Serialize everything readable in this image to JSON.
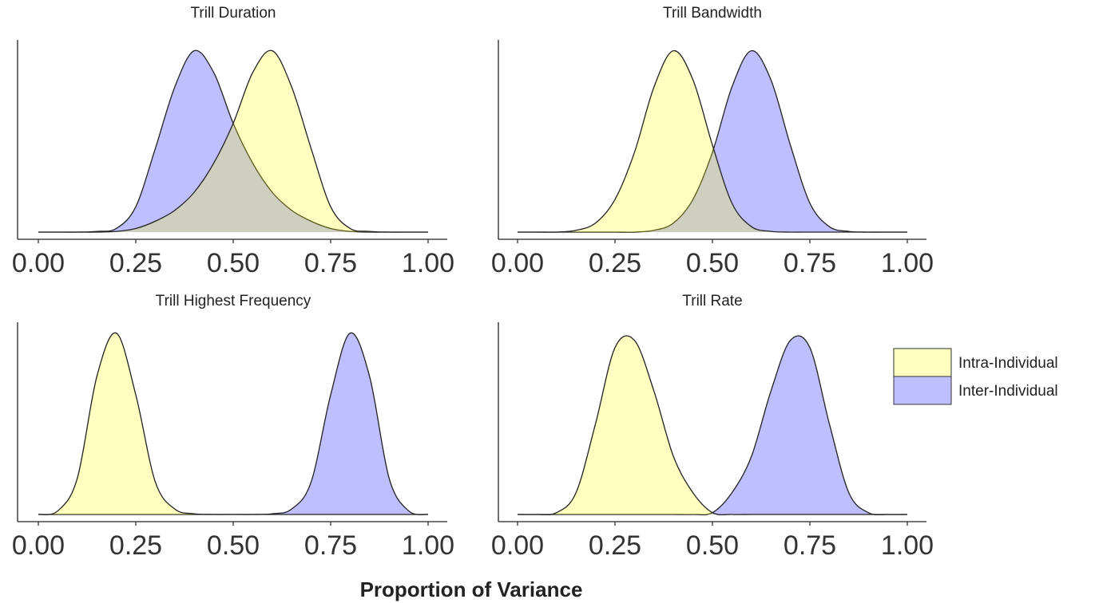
{
  "xlabel": "Proportion of Variance",
  "chart_data": [
    {
      "type": "density",
      "title": "Trill Duration",
      "x": [
        0,
        0.05,
        0.1,
        0.15,
        0.2,
        0.25,
        0.3,
        0.35,
        0.4,
        0.45,
        0.5,
        0.55,
        0.6,
        0.65,
        0.7,
        0.75,
        0.8,
        0.85,
        0.9,
        0.95,
        1
      ],
      "series": [
        {
          "name": "Intra-Individual",
          "color": "#ffff00",
          "values": [
            0,
            0,
            0,
            0,
            0.02,
            0.1,
            0.3,
            0.6,
            1.1,
            1.9,
            3.0,
            4.4,
            5.0,
            4.0,
            2.3,
            0.7,
            0.1,
            0.02,
            0,
            0,
            0
          ]
        },
        {
          "name": "Inter-Individual",
          "color": "#0000ff",
          "values": [
            0,
            0,
            0,
            0.02,
            0.1,
            0.7,
            2.3,
            4.0,
            5.0,
            4.4,
            3.0,
            1.9,
            1.1,
            0.6,
            0.3,
            0.1,
            0.02,
            0,
            0,
            0,
            0
          ]
        }
      ],
      "fill_alpha": 0.25,
      "xlim": [
        0,
        1
      ],
      "ylim": [
        0,
        5.3
      ],
      "xticks": [
        {
          "value": 0,
          "label": "0.00"
        },
        {
          "value": 0.25,
          "label": "0.25"
        },
        {
          "value": 0.5,
          "label": "0.50"
        },
        {
          "value": 0.75,
          "label": "0.75"
        },
        {
          "value": 1,
          "label": "1.00"
        }
      ]
    },
    {
      "type": "density",
      "title": "Trill Bandwidth",
      "x": [
        0,
        0.05,
        0.1,
        0.15,
        0.2,
        0.25,
        0.3,
        0.35,
        0.4,
        0.45,
        0.5,
        0.55,
        0.6,
        0.65,
        0.7,
        0.75,
        0.8,
        0.85,
        0.9,
        0.95,
        1
      ],
      "series": [
        {
          "name": "Intra-Individual",
          "color": "#ffff00",
          "values": [
            0,
            0,
            0,
            0.05,
            0.25,
            0.9,
            2.2,
            4.0,
            5.0,
            4.2,
            2.4,
            0.8,
            0.15,
            0.02,
            0,
            0,
            0,
            0,
            0,
            0,
            0
          ]
        },
        {
          "name": "Inter-Individual",
          "color": "#0000ff",
          "values": [
            0,
            0,
            0,
            0,
            0,
            0,
            0,
            0.05,
            0.25,
            0.9,
            2.2,
            4.0,
            5.0,
            4.2,
            2.4,
            0.8,
            0.15,
            0.02,
            0,
            0,
            0
          ]
        }
      ],
      "fill_alpha": 0.25,
      "xlim": [
        0,
        1
      ],
      "ylim": [
        0,
        5.3
      ],
      "xticks": [
        {
          "value": 0,
          "label": "0.00"
        },
        {
          "value": 0.25,
          "label": "0.25"
        },
        {
          "value": 0.5,
          "label": "0.50"
        },
        {
          "value": 0.75,
          "label": "0.75"
        },
        {
          "value": 1,
          "label": "1.00"
        }
      ]
    },
    {
      "type": "density",
      "title": "Trill Highest Frequency",
      "x": [
        0,
        0.05,
        0.1,
        0.15,
        0.2,
        0.25,
        0.3,
        0.35,
        0.4,
        0.45,
        0.5,
        0.55,
        0.6,
        0.65,
        0.7,
        0.75,
        0.8,
        0.85,
        0.9,
        0.95,
        1
      ],
      "series": [
        {
          "name": "Intra-Individual",
          "color": "#ffff00",
          "values": [
            0,
            0.1,
            1.0,
            3.8,
            5.0,
            3.3,
            0.9,
            0.15,
            0.02,
            0,
            0,
            0,
            0,
            0,
            0,
            0,
            0,
            0,
            0,
            0,
            0
          ]
        },
        {
          "name": "Inter-Individual",
          "color": "#0000ff",
          "values": [
            0,
            0,
            0,
            0,
            0,
            0,
            0,
            0,
            0,
            0,
            0,
            0,
            0.02,
            0.15,
            0.9,
            3.3,
            5.0,
            3.8,
            1.0,
            0.1,
            0
          ]
        }
      ],
      "fill_alpha": 0.25,
      "xlim": [
        0,
        1
      ],
      "ylim": [
        0,
        5.3
      ],
      "xticks": [
        {
          "value": 0,
          "label": "0.00"
        },
        {
          "value": 0.25,
          "label": "0.25"
        },
        {
          "value": 0.5,
          "label": "0.50"
        },
        {
          "value": 0.75,
          "label": "0.75"
        },
        {
          "value": 1,
          "label": "1.00"
        }
      ]
    },
    {
      "type": "density",
      "title": "Trill Rate",
      "x": [
        0,
        0.05,
        0.1,
        0.15,
        0.2,
        0.25,
        0.3,
        0.35,
        0.4,
        0.45,
        0.5,
        0.55,
        0.6,
        0.65,
        0.7,
        0.75,
        0.8,
        0.85,
        0.9,
        0.95,
        1
      ],
      "series": [
        {
          "name": "Intra-Individual",
          "color": "#ffff00",
          "values": [
            0,
            0,
            0.05,
            0.6,
            2.5,
            4.6,
            4.8,
            3.4,
            1.6,
            0.6,
            0.05,
            0,
            0,
            0,
            0,
            0,
            0,
            0,
            0,
            0,
            0
          ]
        },
        {
          "name": "Inter-Individual",
          "color": "#0000ff",
          "values": [
            0,
            0,
            0,
            0,
            0,
            0,
            0,
            0,
            0,
            0,
            0.05,
            0.6,
            1.6,
            3.4,
            4.8,
            4.6,
            2.5,
            0.6,
            0.05,
            0,
            0
          ]
        }
      ],
      "fill_alpha": 0.25,
      "xlim": [
        0,
        1
      ],
      "ylim": [
        0,
        5.3
      ],
      "xticks": [
        {
          "value": 0,
          "label": "0.00"
        },
        {
          "value": 0.25,
          "label": "0.25"
        },
        {
          "value": 0.5,
          "label": "0.50"
        },
        {
          "value": 0.75,
          "label": "0.75"
        },
        {
          "value": 1,
          "label": "1.00"
        }
      ]
    }
  ]
}
